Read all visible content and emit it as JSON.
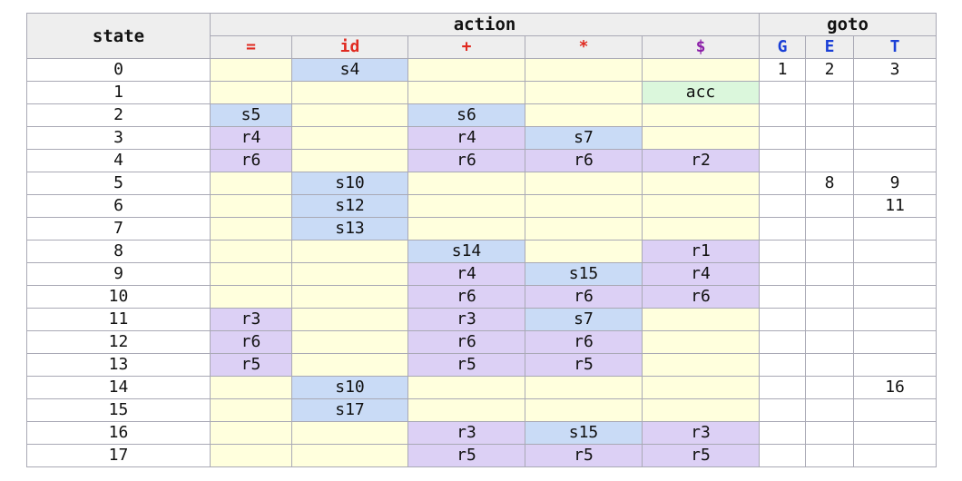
{
  "headers": {
    "state": "state",
    "action": "action",
    "goto": "goto"
  },
  "action_terminals": [
    {
      "label": "=",
      "color": "#e02a20"
    },
    {
      "label": "id",
      "color": "#e02a20"
    },
    {
      "label": "+",
      "color": "#e02a20"
    },
    {
      "label": "*",
      "color": "#e02a20"
    },
    {
      "label": "$",
      "color": "#8b1fa8"
    }
  ],
  "goto_nonterminals": [
    {
      "label": "G",
      "color": "#1a3fd6"
    },
    {
      "label": "E",
      "color": "#1a3fd6"
    },
    {
      "label": "T",
      "color": "#1a3fd6"
    }
  ],
  "colors": {
    "empty_action": "#ffffdd",
    "shift": "#c9dbf6",
    "reduce": "#dcd0f5",
    "accept": "#dbf7dc",
    "header": "#eeeeee"
  },
  "rows": [
    {
      "state": "0",
      "action": [
        "",
        "s4",
        "",
        "",
        ""
      ],
      "goto": [
        "1",
        "2",
        "3"
      ]
    },
    {
      "state": "1",
      "action": [
        "",
        "",
        "",
        "",
        "acc"
      ],
      "goto": [
        "",
        "",
        ""
      ]
    },
    {
      "state": "2",
      "action": [
        "s5",
        "",
        "s6",
        "",
        ""
      ],
      "goto": [
        "",
        "",
        ""
      ]
    },
    {
      "state": "3",
      "action": [
        "r4",
        "",
        "r4",
        "s7",
        ""
      ],
      "goto": [
        "",
        "",
        ""
      ]
    },
    {
      "state": "4",
      "action": [
        "r6",
        "",
        "r6",
        "r6",
        "r2"
      ],
      "goto": [
        "",
        "",
        ""
      ]
    },
    {
      "state": "5",
      "action": [
        "",
        "s10",
        "",
        "",
        ""
      ],
      "goto": [
        "",
        "8",
        "9"
      ]
    },
    {
      "state": "6",
      "action": [
        "",
        "s12",
        "",
        "",
        ""
      ],
      "goto": [
        "",
        "",
        "11"
      ]
    },
    {
      "state": "7",
      "action": [
        "",
        "s13",
        "",
        "",
        ""
      ],
      "goto": [
        "",
        "",
        ""
      ]
    },
    {
      "state": "8",
      "action": [
        "",
        "",
        "s14",
        "",
        "r1"
      ],
      "goto": [
        "",
        "",
        ""
      ]
    },
    {
      "state": "9",
      "action": [
        "",
        "",
        "r4",
        "s15",
        "r4"
      ],
      "goto": [
        "",
        "",
        ""
      ]
    },
    {
      "state": "10",
      "action": [
        "",
        "",
        "r6",
        "r6",
        "r6"
      ],
      "goto": [
        "",
        "",
        ""
      ]
    },
    {
      "state": "11",
      "action": [
        "r3",
        "",
        "r3",
        "s7",
        ""
      ],
      "goto": [
        "",
        "",
        ""
      ]
    },
    {
      "state": "12",
      "action": [
        "r6",
        "",
        "r6",
        "r6",
        ""
      ],
      "goto": [
        "",
        "",
        ""
      ]
    },
    {
      "state": "13",
      "action": [
        "r5",
        "",
        "r5",
        "r5",
        ""
      ],
      "goto": [
        "",
        "",
        ""
      ]
    },
    {
      "state": "14",
      "action": [
        "",
        "s10",
        "",
        "",
        ""
      ],
      "goto": [
        "",
        "",
        "16"
      ]
    },
    {
      "state": "15",
      "action": [
        "",
        "s17",
        "",
        "",
        ""
      ],
      "goto": [
        "",
        "",
        ""
      ]
    },
    {
      "state": "16",
      "action": [
        "",
        "",
        "r3",
        "s15",
        "r3"
      ],
      "goto": [
        "",
        "",
        ""
      ]
    },
    {
      "state": "17",
      "action": [
        "",
        "",
        "r5",
        "r5",
        "r5"
      ],
      "goto": [
        "",
        "",
        ""
      ]
    }
  ]
}
